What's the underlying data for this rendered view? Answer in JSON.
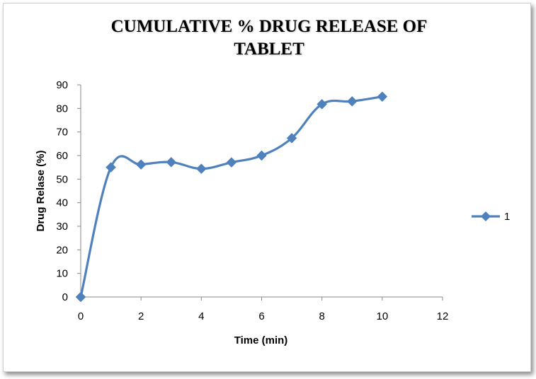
{
  "chart_data": {
    "type": "line",
    "title_lines": [
      "CUMULATIVE  % DRUG RELEASE  OF",
      "TABLET"
    ],
    "xlabel": "Time (min)",
    "ylabel": "Drug Relase (%)",
    "xlim": [
      0,
      12
    ],
    "ylim": [
      0,
      90
    ],
    "xticks": [
      0,
      2,
      4,
      6,
      8,
      10,
      12
    ],
    "yticks": [
      0,
      10,
      20,
      30,
      40,
      50,
      60,
      70,
      80,
      90
    ],
    "grid": false,
    "legend_position": "right",
    "series": [
      {
        "name": "1",
        "color": "#4f81bd",
        "marker": "diamond",
        "smooth": true,
        "x": [
          0,
          1,
          2,
          3,
          4,
          5,
          6,
          7,
          8,
          9,
          10
        ],
        "y": [
          0,
          55,
          56.2,
          57.2,
          54.4,
          57.1,
          60,
          67.4,
          81.8,
          83,
          85
        ]
      }
    ]
  }
}
